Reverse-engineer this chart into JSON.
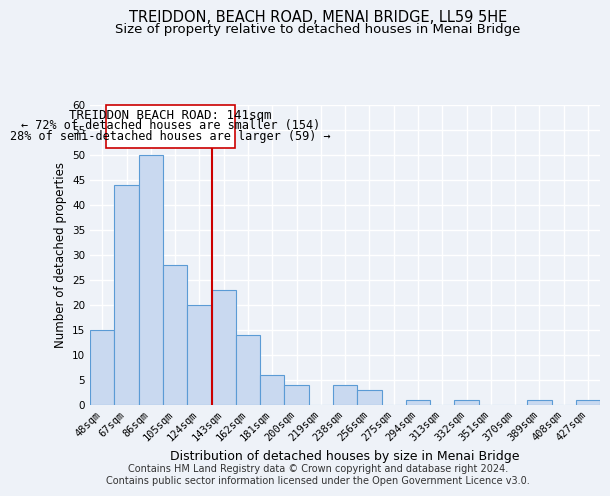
{
  "title": "TREIDDON, BEACH ROAD, MENAI BRIDGE, LL59 5HE",
  "subtitle": "Size of property relative to detached houses in Menai Bridge",
  "xlabel": "Distribution of detached houses by size in Menai Bridge",
  "ylabel": "Number of detached properties",
  "bar_labels": [
    "48sqm",
    "67sqm",
    "86sqm",
    "105sqm",
    "124sqm",
    "143sqm",
    "162sqm",
    "181sqm",
    "200sqm",
    "219sqm",
    "238sqm",
    "256sqm",
    "275sqm",
    "294sqm",
    "313sqm",
    "332sqm",
    "351sqm",
    "370sqm",
    "389sqm",
    "408sqm",
    "427sqm"
  ],
  "bar_values": [
    15,
    44,
    50,
    28,
    20,
    23,
    14,
    6,
    4,
    0,
    4,
    3,
    0,
    1,
    0,
    1,
    0,
    0,
    1,
    0,
    1
  ],
  "bar_color": "#c9d9f0",
  "bar_edge_color": "#5b9bd5",
  "vline_color": "#cc0000",
  "annotation_title": "TREIDDON BEACH ROAD: 141sqm",
  "annotation_line1": "← 72% of detached houses are smaller (154)",
  "annotation_line2": "28% of semi-detached houses are larger (59) →",
  "annotation_box_color": "#ffffff",
  "annotation_box_edge": "#cc0000",
  "ylim": [
    0,
    60
  ],
  "yticks": [
    0,
    5,
    10,
    15,
    20,
    25,
    30,
    35,
    40,
    45,
    50,
    55,
    60
  ],
  "footer_line1": "Contains HM Land Registry data © Crown copyright and database right 2024.",
  "footer_line2": "Contains public sector information licensed under the Open Government Licence v3.0.",
  "title_fontsize": 10.5,
  "subtitle_fontsize": 9.5,
  "xlabel_fontsize": 9,
  "ylabel_fontsize": 8.5,
  "tick_fontsize": 7.5,
  "footer_fontsize": 7,
  "annotation_title_fontsize": 9,
  "annotation_line_fontsize": 8.5,
  "background_color": "#eef2f8"
}
